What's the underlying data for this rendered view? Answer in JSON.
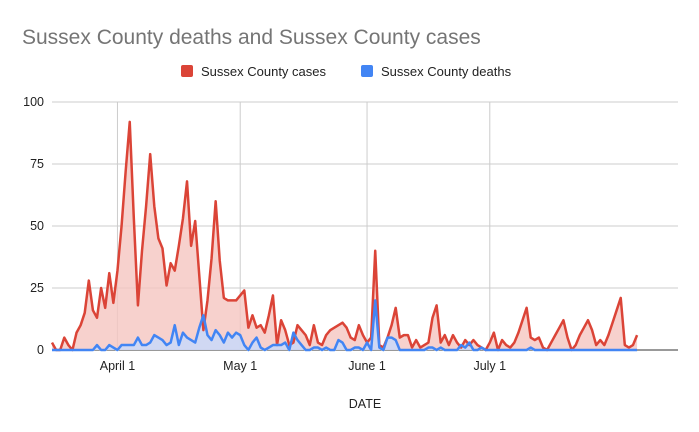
{
  "chart_data": {
    "type": "area",
    "title": "Sussex County deaths and Sussex County cases",
    "xlabel": "DATE",
    "ylabel": "",
    "ylim": [
      0,
      100
    ],
    "yticks": [
      0,
      25,
      50,
      75,
      100
    ],
    "xlim": [
      "2020-03-16",
      "2020-08-16"
    ],
    "xticks": [
      {
        "date": "2020-04-01",
        "label": "April 1"
      },
      {
        "date": "2020-05-01",
        "label": "May 1"
      },
      {
        "date": "2020-06-01",
        "label": "June 1"
      },
      {
        "date": "2020-07-01",
        "label": "July 1"
      }
    ],
    "grid": true,
    "legend": "top",
    "x_start": "2020-03-16",
    "series": [
      {
        "name": "Sussex County cases",
        "color": "#db4437",
        "fill": "#f5c6c0",
        "values": [
          3,
          0,
          0,
          5,
          2,
          0,
          7,
          10,
          15,
          28,
          16,
          13,
          25,
          17,
          31,
          19,
          32,
          50,
          72,
          92,
          53,
          18,
          40,
          58,
          79,
          58,
          45,
          41,
          26,
          35,
          32,
          42,
          53,
          68,
          42,
          52,
          30,
          8,
          20,
          37,
          60,
          36,
          21,
          20,
          20,
          20,
          22,
          24,
          9,
          14,
          9,
          10,
          7,
          14,
          22,
          2,
          12,
          8,
          2,
          3,
          10,
          8,
          6,
          2,
          10,
          3,
          2,
          6,
          8,
          9,
          10,
          11,
          9,
          5,
          4,
          10,
          6,
          3,
          5,
          40,
          2,
          1,
          5,
          10,
          17,
          5,
          6,
          6,
          1,
          4,
          1,
          2,
          3,
          13,
          18,
          3,
          6,
          2,
          6,
          3,
          1,
          4,
          2,
          4,
          2,
          1,
          0,
          3,
          7,
          0,
          4,
          2,
          1,
          3,
          7,
          12,
          17,
          5,
          4,
          5,
          1,
          0,
          3,
          6,
          9,
          12,
          5,
          0,
          2,
          6,
          9,
          12,
          8,
          2,
          4,
          2,
          6,
          11,
          16,
          21,
          2,
          1,
          2,
          6
        ],
        "_x_note": ""
      },
      {
        "name": "Sussex County deaths",
        "color": "#4285f4",
        "fill": "#c6dafc",
        "values": [
          0,
          0,
          0,
          0,
          0,
          0,
          0,
          0,
          0,
          0,
          0,
          2,
          0,
          0,
          2,
          1,
          0,
          2,
          2,
          2,
          2,
          5,
          2,
          2,
          3,
          6,
          5,
          4,
          2,
          3,
          10,
          2,
          7,
          5,
          4,
          3,
          9,
          14,
          6,
          4,
          8,
          6,
          3,
          7,
          5,
          7,
          6,
          2,
          0,
          3,
          5,
          1,
          0,
          1,
          2,
          2,
          2,
          3,
          0,
          7,
          4,
          2,
          0,
          0,
          1,
          1,
          0,
          1,
          0,
          0,
          4,
          3,
          0,
          0,
          1,
          1,
          0,
          3,
          0,
          20,
          1,
          0,
          5,
          5,
          4,
          0,
          0,
          0,
          0,
          0,
          0,
          0,
          1,
          1,
          0,
          1,
          0,
          0,
          0,
          0,
          2,
          1,
          3,
          0,
          0,
          1,
          0,
          0,
          0,
          0,
          0,
          0,
          0,
          0,
          0,
          0,
          0,
          1,
          0,
          0,
          0,
          0,
          0,
          0,
          0,
          0,
          0,
          0,
          0,
          0,
          0,
          0,
          0,
          0,
          0,
          0,
          0,
          0,
          0,
          0,
          0,
          0,
          0,
          0
        ]
      }
    ]
  }
}
